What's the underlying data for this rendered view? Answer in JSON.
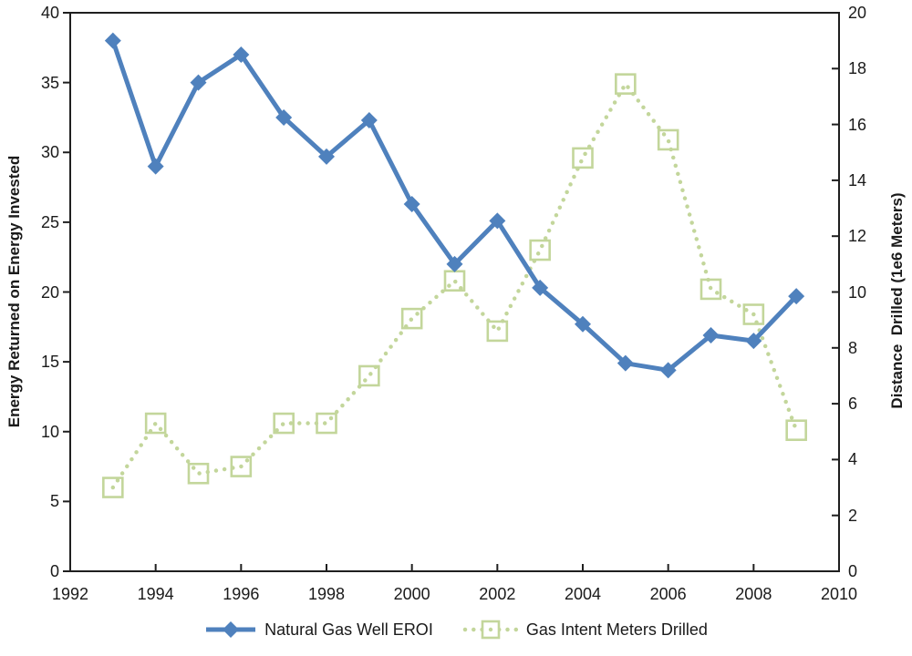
{
  "chart_data": {
    "type": "line",
    "title": "",
    "x": [
      1993,
      1994,
      1995,
      1996,
      1997,
      1998,
      1999,
      2000,
      2001,
      2002,
      2003,
      2004,
      2005,
      2006,
      2007,
      2008,
      2009
    ],
    "series": [
      {
        "name": "Natural Gas Well EROI",
        "axis": "left",
        "color": "#4F81BD",
        "marker": "filled-diamond",
        "line_style": "solid",
        "values": [
          38.0,
          29.0,
          35.0,
          37.0,
          32.5,
          29.7,
          32.3,
          26.3,
          22.0,
          25.1,
          20.3,
          17.7,
          14.9,
          14.4,
          16.9,
          16.5,
          19.7
        ]
      },
      {
        "name": "Gas Intent Meters Drilled",
        "axis": "right",
        "color": "#C3D69B",
        "marker": "open-square",
        "line_style": "dotted",
        "values": [
          3.0,
          5.3,
          3.5,
          3.75,
          5.3,
          5.3,
          7.0,
          9.05,
          10.4,
          8.6,
          11.5,
          14.8,
          17.45,
          15.45,
          10.1,
          9.2,
          5.05
        ]
      }
    ],
    "left_axis": {
      "label": "Energy Returned on Energy Invested",
      "min": 0,
      "max": 40,
      "ticks": [
        0,
        5,
        10,
        15,
        20,
        25,
        30,
        35,
        40
      ]
    },
    "right_axis": {
      "label": "Distance  Drilled (1e6 Meters)",
      "min": 0,
      "max": 20,
      "ticks": [
        0,
        2,
        4,
        6,
        8,
        10,
        12,
        14,
        16,
        18,
        20
      ]
    },
    "x_axis": {
      "label": "",
      "min": 1992,
      "max": 2010,
      "ticks": [
        1992,
        1994,
        1996,
        1998,
        2000,
        2002,
        2004,
        2006,
        2008,
        2010
      ]
    },
    "legend_position": "bottom",
    "grid": false,
    "plot_border_color": "#1F1F1F",
    "background_color": "#FFFFFF"
  }
}
